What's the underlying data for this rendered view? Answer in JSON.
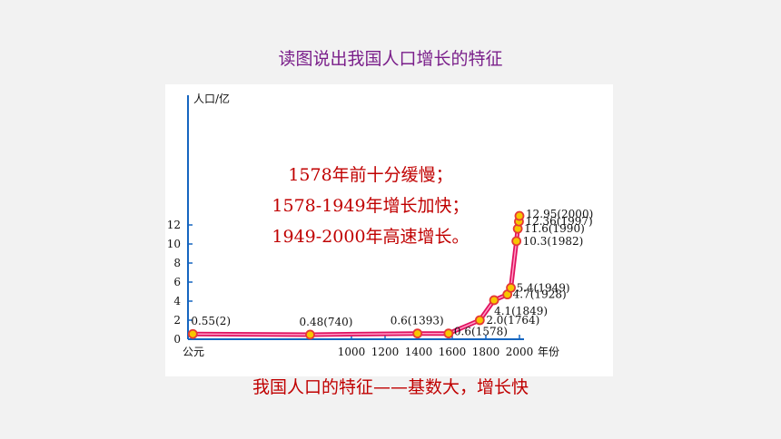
{
  "slide_title": "读图说出我国人口增长的特征",
  "caption": "我国人口的特征——基数大，增长快",
  "note_lines": [
    "1578年前十分缓慢；",
    "1578-1949年增长加快；",
    "1949-2000年高速增长。"
  ],
  "colors": {
    "title": "#7a1f8a",
    "accent": "#c00000",
    "line": "#e0115f",
    "point": "#f7c600",
    "axis": "#1565c0"
  },
  "chart_data": {
    "type": "line",
    "ylabel": "人口/亿",
    "xlabel": "年份",
    "origin_label": "公元",
    "ylim": [
      0,
      13
    ],
    "y_ticks": [
      "0",
      "2",
      "4",
      "6",
      "8",
      "10",
      "12"
    ],
    "x_ticks": [
      "1000",
      "1200",
      "1400",
      "1600",
      "1800",
      "2000"
    ],
    "grid": false,
    "points": [
      {
        "x": 2,
        "y": 0.55,
        "label": "0.55(2)"
      },
      {
        "x": 740,
        "y": 0.48,
        "label": "0.48(740)"
      },
      {
        "x": 1393,
        "y": 0.6,
        "label": "0.6(1393)"
      },
      {
        "x": 1578,
        "y": 0.6,
        "label": "0.6(1578)"
      },
      {
        "x": 1764,
        "y": 2.0,
        "label": "2.0(1764)"
      },
      {
        "x": 1849,
        "y": 4.1,
        "label": "4.1(1849)"
      },
      {
        "x": 1928,
        "y": 4.7,
        "label": "4.7(1928)"
      },
      {
        "x": 1949,
        "y": 5.4,
        "label": "5.4(1949)"
      },
      {
        "x": 1982,
        "y": 10.3,
        "label": "10.3(1982)"
      },
      {
        "x": 1990,
        "y": 11.6,
        "label": "11.6(1990)"
      },
      {
        "x": 1997,
        "y": 12.36,
        "label": "12.36(1997)"
      },
      {
        "x": 2000,
        "y": 12.95,
        "label": "12.95(2000)"
      }
    ]
  }
}
